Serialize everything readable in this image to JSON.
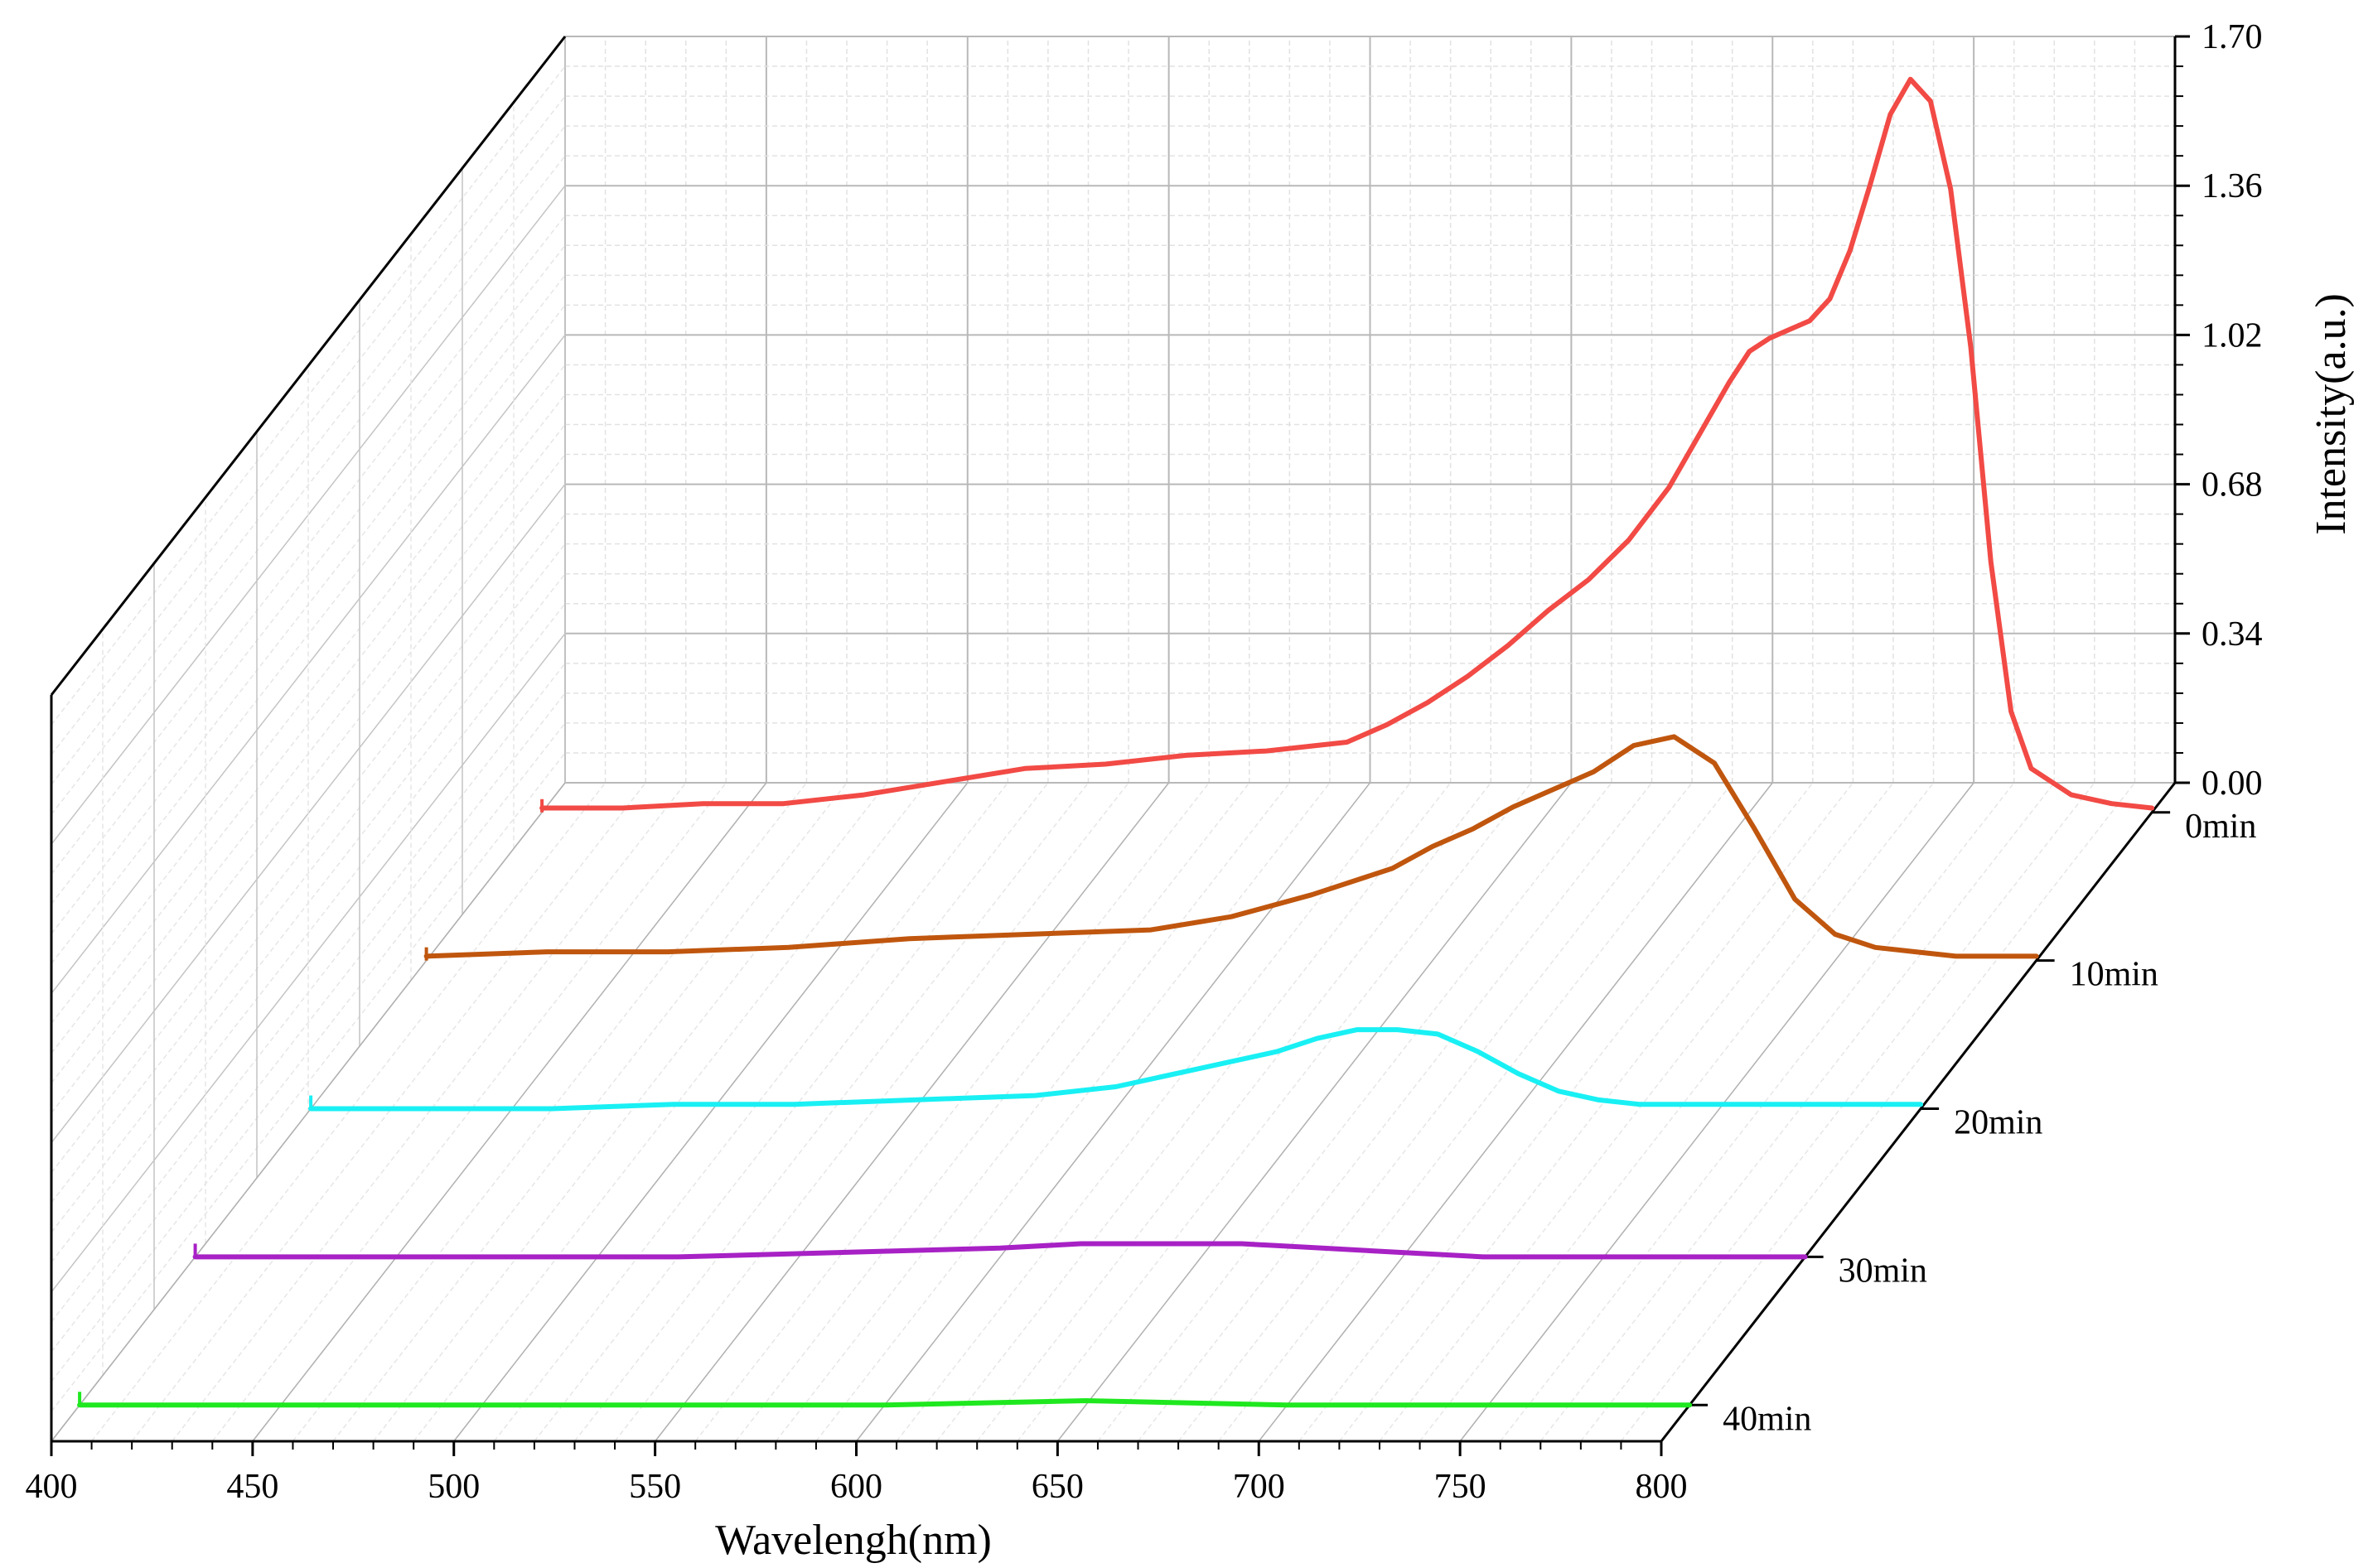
{
  "chart_data": {
    "type": "line",
    "subtype": "3d-waterfall",
    "title": "",
    "xlabel": "Wavelengh(nm)",
    "ylabel": "Intensity(a.u.)",
    "xlim": [
      400,
      800
    ],
    "ylim": [
      0,
      1.7
    ],
    "x_ticks": [
      "400",
      "450",
      "500",
      "550",
      "600",
      "650",
      "700",
      "750",
      "800"
    ],
    "y_ticks": [
      "0.00",
      "0.34",
      "0.68",
      "1.02",
      "1.36",
      "1.70"
    ],
    "grid": true,
    "legend": "none",
    "series": [
      {
        "name": "0min",
        "color": "#f24a45",
        "x": [
          400,
          420,
          440,
          460,
          480,
          500,
          520,
          540,
          560,
          580,
          600,
          610,
          620,
          630,
          640,
          650,
          660,
          670,
          680,
          690,
          695,
          700,
          705,
          710,
          715,
          720,
          725,
          730,
          735,
          740,
          745,
          750,
          755,
          760,
          765,
          770,
          780,
          790,
          800
        ],
        "y": [
          0.01,
          0.01,
          0.02,
          0.02,
          0.04,
          0.07,
          0.1,
          0.11,
          0.13,
          0.14,
          0.16,
          0.2,
          0.25,
          0.31,
          0.38,
          0.46,
          0.53,
          0.62,
          0.74,
          0.9,
          0.98,
          1.05,
          1.08,
          1.1,
          1.12,
          1.17,
          1.28,
          1.43,
          1.59,
          1.67,
          1.62,
          1.42,
          1.06,
          0.57,
          0.23,
          0.1,
          0.04,
          0.02,
          0.01
        ]
      },
      {
        "name": "10min",
        "color": "#c0560e",
        "x": [
          400,
          430,
          460,
          490,
          520,
          550,
          580,
          600,
          620,
          640,
          650,
          660,
          670,
          680,
          690,
          700,
          710,
          720,
          730,
          740,
          750,
          760,
          770,
          780,
          790,
          800
        ],
        "y": [
          0.01,
          0.02,
          0.02,
          0.03,
          0.05,
          0.06,
          0.07,
          0.1,
          0.15,
          0.21,
          0.26,
          0.3,
          0.35,
          0.39,
          0.43,
          0.49,
          0.51,
          0.45,
          0.3,
          0.14,
          0.06,
          0.03,
          0.02,
          0.01,
          0.01,
          0.01
        ]
      },
      {
        "name": "20min",
        "color": "#19f0f4",
        "x": [
          400,
          430,
          460,
          490,
          520,
          550,
          580,
          600,
          620,
          640,
          650,
          660,
          670,
          680,
          690,
          700,
          710,
          720,
          730,
          740,
          750,
          760,
          770,
          780,
          790,
          800
        ],
        "y": [
          0.0,
          0.0,
          0.0,
          0.01,
          0.01,
          0.02,
          0.03,
          0.05,
          0.09,
          0.13,
          0.16,
          0.18,
          0.18,
          0.17,
          0.13,
          0.08,
          0.04,
          0.02,
          0.01,
          0.01,
          0.01,
          0.01,
          0.01,
          0.01,
          0.01,
          0.01
        ]
      },
      {
        "name": "30min",
        "color": "#a721c5",
        "x": [
          400,
          440,
          480,
          520,
          560,
          600,
          620,
          640,
          660,
          680,
          700,
          720,
          740,
          760,
          780,
          800
        ],
        "y": [
          0.0,
          0.0,
          0.0,
          0.0,
          0.01,
          0.02,
          0.03,
          0.03,
          0.03,
          0.02,
          0.01,
          0.0,
          0.0,
          0.0,
          0.0,
          0.0
        ]
      },
      {
        "name": "40min",
        "color": "#1fe81f",
        "x": [
          400,
          450,
          500,
          550,
          600,
          650,
          700,
          750,
          800
        ],
        "y": [
          0.0,
          0.0,
          0.0,
          0.0,
          0.0,
          0.01,
          0.0,
          0.0,
          0.0
        ]
      }
    ]
  }
}
